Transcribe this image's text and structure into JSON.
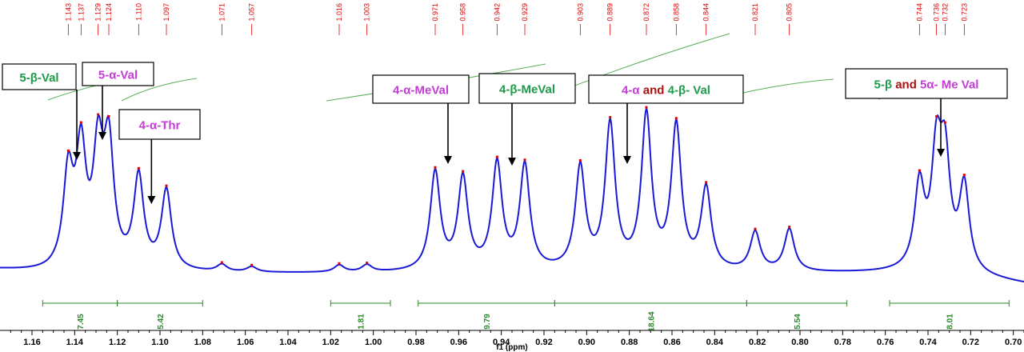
{
  "chart_data": {
    "type": "line",
    "xlabel": "f1 (ppm)",
    "xlim": [
      1.175,
      0.695
    ],
    "x_reversed": true,
    "ticks": [
      1.16,
      1.14,
      1.12,
      1.1,
      1.08,
      1.06,
      1.04,
      1.02,
      1.0,
      0.98,
      0.96,
      0.94,
      0.92,
      0.9,
      0.88,
      0.86,
      0.84,
      0.82,
      0.8,
      0.78,
      0.76,
      0.74,
      0.72,
      0.7
    ],
    "tick_labels": [
      "1.16",
      "1.14",
      "1.12",
      "1.10",
      "1.08",
      "1.06",
      "1.04",
      "1.02",
      "1.00",
      "0.98",
      "0.96",
      "0.94",
      "0.92",
      "0.90",
      "0.88",
      "0.86",
      "0.84",
      "0.82",
      "0.80",
      "0.78",
      "0.76",
      "0.74",
      "0.72",
      "0.70"
    ],
    "peak_labels": [
      "1.143",
      "1.137",
      "1.129",
      "1.124",
      "1.110",
      "1.097",
      "1.071",
      "1.057",
      "1.016",
      "1.003",
      "0.971",
      "0.958",
      "0.942",
      "0.929",
      "0.903",
      "0.889",
      "0.872",
      "0.858",
      "0.844",
      "0.821",
      "0.805",
      "0.744",
      "0.736",
      "0.732",
      "0.723"
    ],
    "peaks": [
      {
        "x": 1.143,
        "h": 0.53
      },
      {
        "x": 1.137,
        "h": 0.65
      },
      {
        "x": 1.129,
        "h": 0.63
      },
      {
        "x": 1.124,
        "h": 0.67
      },
      {
        "x": 1.11,
        "h": 0.52
      },
      {
        "x": 1.097,
        "h": 0.45
      },
      {
        "x": 1.071,
        "h": 0.04
      },
      {
        "x": 1.057,
        "h": 0.03
      },
      {
        "x": 1.016,
        "h": 0.04
      },
      {
        "x": 1.003,
        "h": 0.04
      },
      {
        "x": 0.971,
        "h": 0.56
      },
      {
        "x": 0.958,
        "h": 0.52
      },
      {
        "x": 0.942,
        "h": 0.6
      },
      {
        "x": 0.929,
        "h": 0.59
      },
      {
        "x": 0.903,
        "h": 0.58
      },
      {
        "x": 0.889,
        "h": 0.82
      },
      {
        "x": 0.872,
        "h": 0.87
      },
      {
        "x": 0.858,
        "h": 0.81
      },
      {
        "x": 0.844,
        "h": 0.46
      },
      {
        "x": 0.821,
        "h": 0.22
      },
      {
        "x": 0.805,
        "h": 0.24
      },
      {
        "x": 0.744,
        "h": 0.47
      },
      {
        "x": 0.736,
        "h": 0.62
      },
      {
        "x": 0.732,
        "h": 0.58
      },
      {
        "x": 0.723,
        "h": 0.48
      }
    ],
    "integrals": [
      {
        "from": 1.155,
        "to": 1.12,
        "label": "7.45"
      },
      {
        "from": 1.12,
        "to": 1.08,
        "label": "5.42"
      },
      {
        "from": 1.02,
        "to": 0.992,
        "label": "1.81"
      },
      {
        "from": 0.979,
        "to": 0.915,
        "label": "9.79"
      },
      {
        "from": 0.915,
        "to": 0.825,
        "label": "18.64"
      },
      {
        "from": 0.825,
        "to": 0.778,
        "label": "5.54"
      },
      {
        "from": 0.758,
        "to": 0.702,
        "label": "8.01"
      }
    ],
    "annotations": [
      {
        "id": "ann-5-beta-val",
        "parts": [
          {
            "t": "5-β-Val",
            "c": "#1e9a4a"
          }
        ],
        "target": 1.139
      },
      {
        "id": "ann-5-alpha-val",
        "parts": [
          {
            "t": "5-α-Val",
            "c": "#c43cd6"
          }
        ],
        "target": 1.127
      },
      {
        "id": "ann-4-alpha-thr",
        "parts": [
          {
            "t": "4-α-Thr",
            "c": "#c43cd6"
          }
        ],
        "target": 1.104
      },
      {
        "id": "ann-4-alpha-meval",
        "parts": [
          {
            "t": "4-α-MeVal",
            "c": "#c43cd6"
          }
        ],
        "target": 0.965
      },
      {
        "id": "ann-4-beta-meval",
        "parts": [
          {
            "t": "4-β-MeVal",
            "c": "#1e9a4a"
          }
        ],
        "target": 0.935
      },
      {
        "id": "ann-4-alpha-4-beta-val",
        "parts": [
          {
            "t": "4-α",
            "c": "#c43cd6"
          },
          {
            "t": " and ",
            "c": "#b01010"
          },
          {
            "t": "4-β- Val",
            "c": "#1e9a4a"
          }
        ],
        "target": 0.881
      },
      {
        "id": "ann-5-beta-5alpha-meval",
        "parts": [
          {
            "t": "5-β",
            "c": "#1e9a4a"
          },
          {
            "t": " and ",
            "c": "#b01010"
          },
          {
            "t": "5α- Me ",
            "c": "#c43cd6"
          },
          {
            "t": "Val",
            "c": "#c43cd6"
          }
        ],
        "target": 0.734
      }
    ],
    "colors": {
      "spectrum": "#1a1ad6",
      "peak_marker": "#e00000",
      "integral": "#2a8a2a",
      "arrow": "#000000"
    }
  }
}
